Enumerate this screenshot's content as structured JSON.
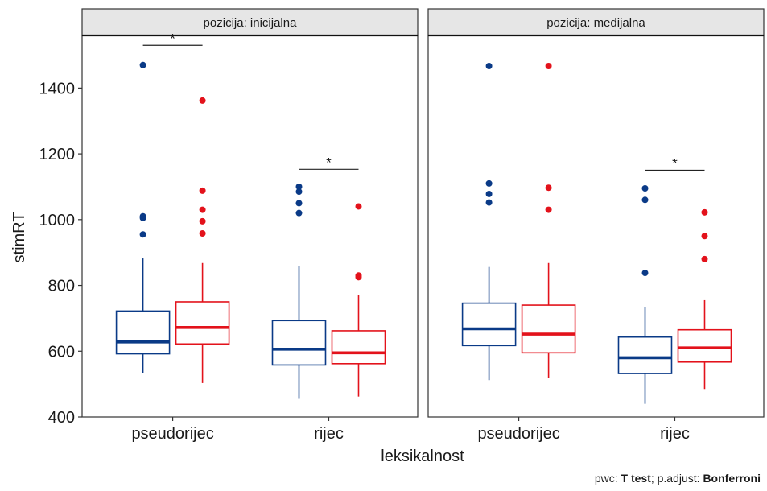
{
  "chart_data": {
    "type": "boxplot",
    "ylabel": "stimRT",
    "xlabel": "leksikalnost",
    "ylim": [
      400,
      1560
    ],
    "yticks": [
      400,
      600,
      800,
      1000,
      1200,
      1400
    ],
    "categories": [
      "pseudorijec",
      "rijec"
    ],
    "colors": {
      "blue": "#0a3a87",
      "red": "#e3121b"
    },
    "facets": [
      {
        "strip": "pozicija: inicijalna",
        "groups": [
          {
            "category": "pseudorijec",
            "color": "blue",
            "whisker_low": 533,
            "q1": 592,
            "median": 628,
            "q3": 722,
            "whisker_high": 882,
            "outliers": [
              955,
              1005,
              1010,
              1470
            ]
          },
          {
            "category": "pseudorijec",
            "color": "red",
            "whisker_low": 503,
            "q1": 622,
            "median": 672,
            "q3": 750,
            "whisker_high": 868,
            "outliers": [
              958,
              995,
              1030,
              1088,
              1362
            ]
          },
          {
            "category": "rijec",
            "color": "blue",
            "whisker_low": 455,
            "q1": 558,
            "median": 606,
            "q3": 693,
            "whisker_high": 860,
            "outliers": [
              1020,
              1050,
              1085,
              1100
            ]
          },
          {
            "category": "rijec",
            "color": "red",
            "whisker_low": 462,
            "q1": 562,
            "median": 595,
            "q3": 662,
            "whisker_high": 772,
            "outliers": [
              825,
              830,
              1040
            ]
          }
        ],
        "significance": [
          {
            "category": "pseudorijec",
            "label": "*",
            "y": 1530
          },
          {
            "category": "rijec",
            "label": "*",
            "y": 1153
          }
        ]
      },
      {
        "strip": "pozicija: medijalna",
        "groups": [
          {
            "category": "pseudorijec",
            "color": "blue",
            "whisker_low": 512,
            "q1": 617,
            "median": 668,
            "q3": 746,
            "whisker_high": 856,
            "outliers": [
              1052,
              1078,
              1110,
              1467
            ]
          },
          {
            "category": "pseudorijec",
            "color": "red",
            "whisker_low": 518,
            "q1": 595,
            "median": 652,
            "q3": 740,
            "whisker_high": 868,
            "outliers": [
              1030,
              1097,
              1467
            ]
          },
          {
            "category": "rijec",
            "color": "blue",
            "whisker_low": 440,
            "q1": 532,
            "median": 580,
            "q3": 643,
            "whisker_high": 735,
            "outliers": [
              838,
              1060,
              1095
            ]
          },
          {
            "category": "rijec",
            "color": "red",
            "whisker_low": 485,
            "q1": 567,
            "median": 610,
            "q3": 665,
            "whisker_high": 755,
            "outliers": [
              880,
              950,
              1022
            ]
          }
        ],
        "significance": [
          {
            "category": "rijec",
            "label": "*",
            "y": 1150
          }
        ]
      }
    ]
  },
  "caption": {
    "prefix": "pwc: ",
    "test": "T test",
    "middle": "; p.adjust: ",
    "adjust": "Bonferroni"
  }
}
